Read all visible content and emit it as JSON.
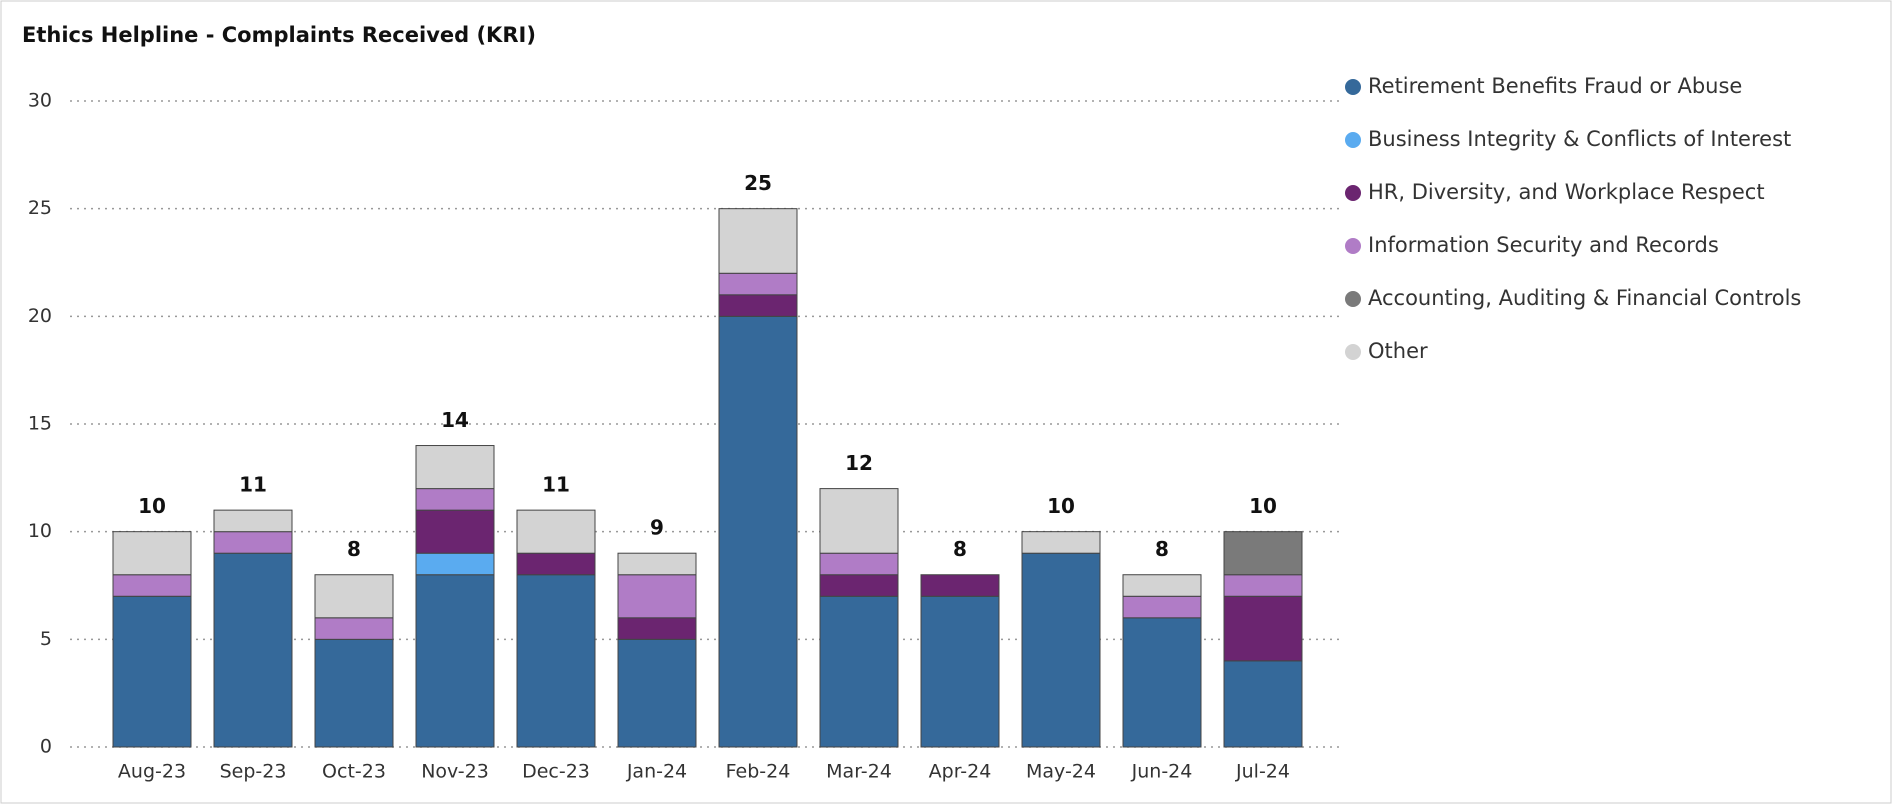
{
  "chart_data": {
    "type": "stacked_bar",
    "title": "Ethics Helpline - Complaints Received (KRI)",
    "categories": [
      "Aug-23",
      "Sep-23",
      "Oct-23",
      "Nov-23",
      "Dec-23",
      "Jan-24",
      "Feb-24",
      "Mar-24",
      "Apr-24",
      "May-24",
      "Jun-24",
      "Jul-24"
    ],
    "series": [
      {
        "name": "Retirement Benefits Fraud or Abuse",
        "color": "#35699a",
        "values": [
          7,
          9,
          5,
          8,
          8,
          5,
          20,
          7,
          7,
          9,
          6,
          4
        ]
      },
      {
        "name": "Business Integrity & Conflicts of Interest",
        "color": "#5aabf0",
        "values": [
          0,
          0,
          0,
          1,
          0,
          0,
          0,
          0,
          0,
          0,
          0,
          0
        ]
      },
      {
        "name": "HR, Diversity, and Workplace Respect",
        "color": "#6b2570",
        "values": [
          0,
          0,
          0,
          2,
          1,
          1,
          1,
          1,
          1,
          0,
          0,
          3
        ]
      },
      {
        "name": "Information Security and Records",
        "color": "#b07cc6",
        "values": [
          1,
          1,
          1,
          1,
          0,
          2,
          1,
          1,
          0,
          0,
          1,
          1
        ]
      },
      {
        "name": "Accounting, Auditing & Financial Controls",
        "color": "#7a7a7a",
        "values": [
          0,
          0,
          0,
          0,
          0,
          0,
          0,
          0,
          0,
          0,
          0,
          2
        ]
      },
      {
        "name": "Other",
        "color": "#d3d3d3",
        "values": [
          2,
          1,
          2,
          2,
          2,
          1,
          3,
          3,
          0,
          1,
          1,
          0
        ]
      }
    ],
    "totals": [
      10,
      11,
      8,
      14,
      11,
      9,
      25,
      12,
      8,
      10,
      8,
      10
    ],
    "ylim": [
      0,
      30
    ],
    "yticks": [
      0,
      5,
      10,
      15,
      20,
      25,
      30
    ],
    "grid": true,
    "legend": "right"
  }
}
